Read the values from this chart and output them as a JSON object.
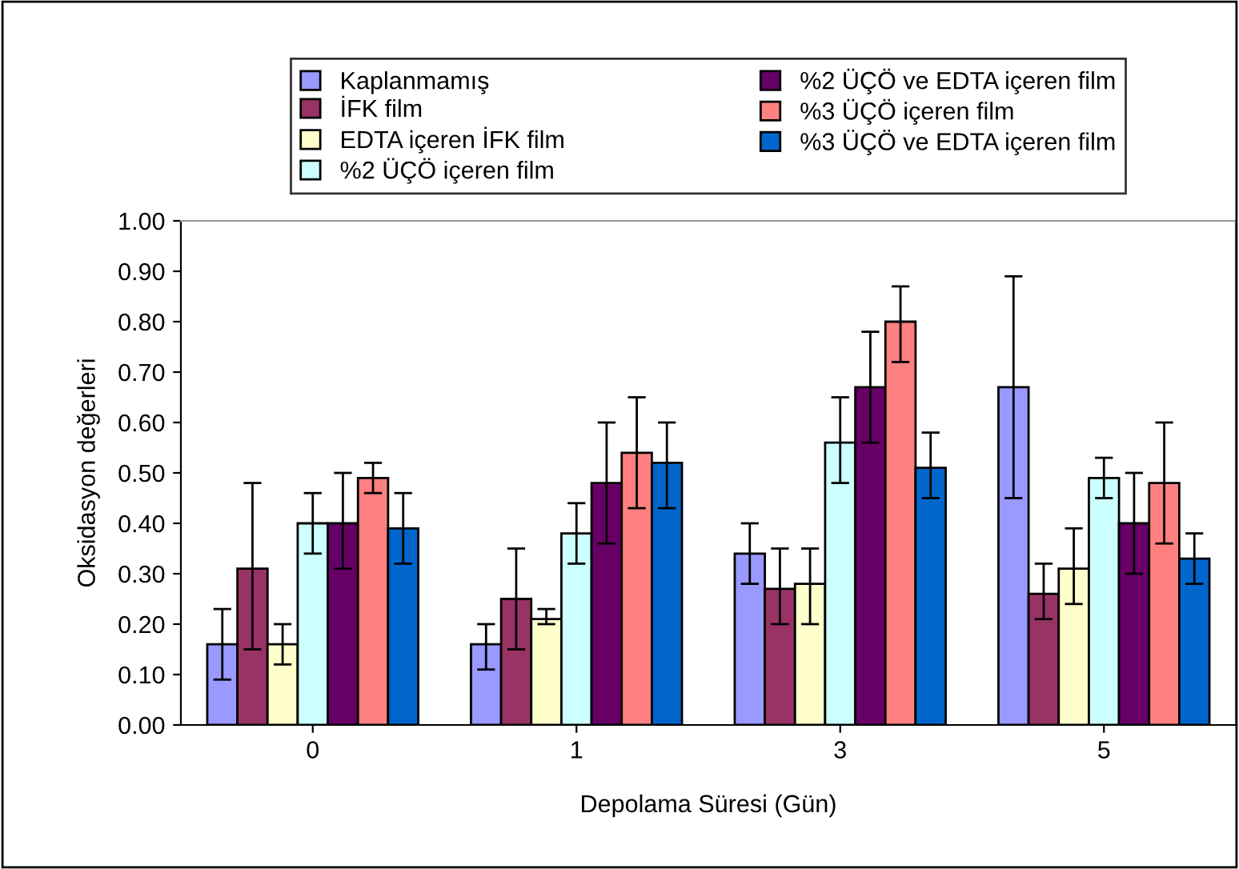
{
  "chart_data": {
    "type": "bar",
    "categories": [
      "0",
      "1",
      "3",
      "5"
    ],
    "xlabel": "Depolama Süresi (Gün)",
    "ylabel": "Oksidasyon değerleri",
    "ylim": [
      0,
      1
    ],
    "yticks": [
      {
        "value": 0,
        "label": "0.00"
      },
      {
        "value": 0.1,
        "label": "0.10"
      },
      {
        "value": 0.2,
        "label": "0.20"
      },
      {
        "value": 0.3,
        "label": "0.30"
      },
      {
        "value": 0.4,
        "label": "0.40"
      },
      {
        "value": 0.5,
        "label": "0.50"
      },
      {
        "value": 0.6,
        "label": "0.60"
      },
      {
        "value": 0.7,
        "label": "0.70"
      },
      {
        "value": 0.8,
        "label": "0.80"
      },
      {
        "value": 0.9,
        "label": "0.90"
      },
      {
        "value": 1,
        "label": "1.00"
      }
    ],
    "grid": false,
    "legend": "top",
    "series": [
      {
        "name": "Kaplanmamış",
        "color": "#9999ff",
        "values": [
          0.16,
          0.16,
          0.34,
          0.67
        ],
        "errors": [
          [
            0.09,
            0.23
          ],
          [
            0.11,
            0.2
          ],
          [
            0.28,
            0.4
          ],
          [
            0.45,
            0.89
          ]
        ]
      },
      {
        "name": "İFK film",
        "color": "#993366",
        "values": [
          0.31,
          0.25,
          0.27,
          0.26
        ],
        "errors": [
          [
            0.15,
            0.48
          ],
          [
            0.15,
            0.35
          ],
          [
            0.2,
            0.35
          ],
          [
            0.21,
            0.32
          ]
        ]
      },
      {
        "name": "EDTA içeren İFK film",
        "color": "#ffffcc",
        "values": [
          0.16,
          0.21,
          0.28,
          0.31
        ],
        "errors": [
          [
            0.12,
            0.2
          ],
          [
            0.2,
            0.23
          ],
          [
            0.2,
            0.35
          ],
          [
            0.24,
            0.39
          ]
        ]
      },
      {
        "name": "%2 ÜÇÖ içeren film",
        "color": "#ccffff",
        "values": [
          0.4,
          0.38,
          0.56,
          0.49
        ],
        "errors": [
          [
            0.34,
            0.46
          ],
          [
            0.32,
            0.44
          ],
          [
            0.48,
            0.65
          ],
          [
            0.45,
            0.53
          ]
        ]
      },
      {
        "name": "%2 ÜÇÖ ve EDTA içeren film",
        "color": "#660066",
        "values": [
          0.4,
          0.48,
          0.67,
          0.4
        ],
        "errors": [
          [
            0.31,
            0.5
          ],
          [
            0.36,
            0.6
          ],
          [
            0.56,
            0.78
          ],
          [
            0.3,
            0.5
          ]
        ]
      },
      {
        "name": "%3 ÜÇÖ içeren film",
        "color": "#ff8080",
        "values": [
          0.49,
          0.54,
          0.8,
          0.48
        ],
        "errors": [
          [
            0.46,
            0.52
          ],
          [
            0.43,
            0.65
          ],
          [
            0.72,
            0.87
          ],
          [
            0.36,
            0.6
          ]
        ]
      },
      {
        "name": "%3 ÜÇÖ ve EDTA içeren film",
        "color": "#0066cc",
        "values": [
          0.39,
          0.52,
          0.51,
          0.33
        ],
        "errors": [
          [
            0.32,
            0.46
          ],
          [
            0.43,
            0.6
          ],
          [
            0.45,
            0.58
          ],
          [
            0.28,
            0.38
          ]
        ]
      }
    ]
  }
}
